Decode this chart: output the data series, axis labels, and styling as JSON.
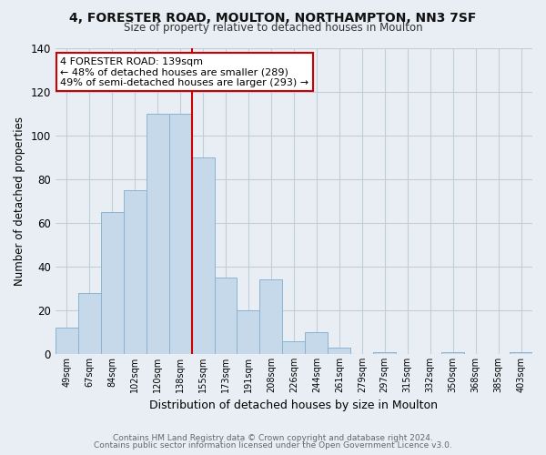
{
  "title_line1": "4, FORESTER ROAD, MOULTON, NORTHAMPTON, NN3 7SF",
  "title_line2": "Size of property relative to detached houses in Moulton",
  "xlabel": "Distribution of detached houses by size in Moulton",
  "ylabel": "Number of detached properties",
  "bar_labels": [
    "49sqm",
    "67sqm",
    "84sqm",
    "102sqm",
    "120sqm",
    "138sqm",
    "155sqm",
    "173sqm",
    "191sqm",
    "208sqm",
    "226sqm",
    "244sqm",
    "261sqm",
    "279sqm",
    "297sqm",
    "315sqm",
    "332sqm",
    "350sqm",
    "368sqm",
    "385sqm",
    "403sqm"
  ],
  "bar_values": [
    12,
    28,
    65,
    75,
    110,
    110,
    90,
    35,
    20,
    34,
    6,
    10,
    3,
    0,
    1,
    0,
    0,
    1,
    0,
    0,
    1
  ],
  "bar_color": "#c5d9ea",
  "bar_edge_color": "#8ab4d0",
  "vline_x_index": 5,
  "vline_color": "#cc0000",
  "ylim": [
    0,
    140
  ],
  "yticks": [
    0,
    20,
    40,
    60,
    80,
    100,
    120,
    140
  ],
  "annotation_line1": "4 FORESTER ROAD: 139sqm",
  "annotation_line2": "← 48% of detached houses are smaller (289)",
  "annotation_line3": "49% of semi-detached houses are larger (293) →",
  "annotation_box_color": "#ffffff",
  "annotation_box_edge": "#cc0000",
  "footer_line1": "Contains HM Land Registry data © Crown copyright and database right 2024.",
  "footer_line2": "Contains public sector information licensed under the Open Government Licence v3.0.",
  "background_color": "#e8eef4",
  "plot_bg_color": "#e8eef4",
  "grid_color": "#c0ceda"
}
